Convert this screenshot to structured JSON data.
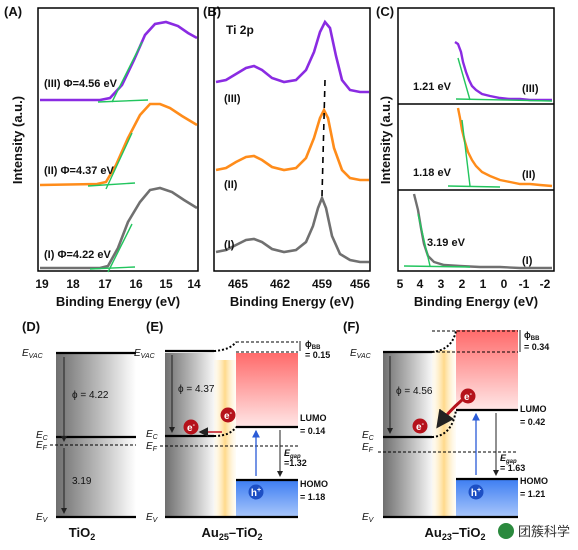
{
  "panels": {
    "A": {
      "letter": "(A)",
      "ylabel": "Intensity (a.u.)",
      "xlabel": "Binding Energy (eV)",
      "xticks": [
        "19",
        "18",
        "17",
        "16",
        "15",
        "14"
      ],
      "curves": [
        {
          "label": "(III) Φ=4.56 eV",
          "color": "#8a2be2"
        },
        {
          "label": "(II) Φ=4.37 eV",
          "color": "#ff8c1a"
        },
        {
          "label": "(I) Φ=4.22 eV",
          "color": "#707070"
        }
      ]
    },
    "B": {
      "letter": "(B)",
      "title": "Ti 2p",
      "xlabel": "Binding Energy (eV)",
      "xticks": [
        "465",
        "462",
        "459",
        "456"
      ],
      "curves": [
        {
          "label": "(III)",
          "color": "#8a2be2"
        },
        {
          "label": "(II)",
          "color": "#ff8c1a"
        },
        {
          "label": "(I)",
          "color": "#707070"
        }
      ]
    },
    "C": {
      "letter": "(C)",
      "ylabel": "Intensity (a.u.)",
      "xlabel": "Binding Energy (eV)",
      "xticks": [
        "5",
        "4",
        "3",
        "2",
        "1",
        "0",
        "-1",
        "-2"
      ],
      "curves": [
        {
          "label": "(III)",
          "edge": "1.21 eV",
          "color": "#8a2be2"
        },
        {
          "label": "(II)",
          "edge": "1.18 eV",
          "color": "#ff8c1a"
        },
        {
          "label": "(I)",
          "edge": "3.19 eV",
          "color": "#707070"
        }
      ]
    },
    "D": {
      "letter": "(D)",
      "evac": "E",
      "evac_sub": "VAC",
      "ec": "E",
      "ec_sub": "C",
      "ef": "E",
      "ef_sub": "F",
      "ev": "E",
      "ev_sub": "V",
      "phi": "ϕ = 4.22",
      "gap": "3.19",
      "caption": "TiO",
      "caption_sub": "2"
    },
    "E": {
      "letter": "(E)",
      "evac": "E",
      "evac_sub": "VAC",
      "ec": "E",
      "ec_sub": "C",
      "ef": "E",
      "ef_sub": "F",
      "ev": "E",
      "ev_sub": "V",
      "phi": "ϕ = 4.37",
      "phibb": "ϕ",
      "phibb_sub": "BB",
      "phibb_val": "= 0.15",
      "lumo": "LUMO",
      "lumo_val": "= 0.14",
      "egap": "E",
      "egap_sub": "gap",
      "egap_val": "=1.32",
      "homo": "HOMO",
      "homo_val": "= 1.18",
      "electron": "e",
      "hole": "h",
      "caption": "Au",
      "caption_sub": "25",
      "caption_tail": "–TiO",
      "caption_tail_sub": "2"
    },
    "F": {
      "letter": "(F)",
      "evac": "E",
      "evac_sub": "VAC",
      "ec": "E",
      "ec_sub": "C",
      "ef": "E",
      "ef_sub": "F",
      "ev": "E",
      "ev_sub": "V",
      "phi": "ϕ = 4.56",
      "phibb": "ϕ",
      "phibb_sub": "BB",
      "phibb_val": "= 0.34",
      "lumo": "LUMO",
      "lumo_val": "= 0.42",
      "egap": "E",
      "egap_sub": "gap",
      "egap_val": "= 1.63",
      "homo": "HOMO",
      "homo_val": "= 1.21",
      "electron": "e",
      "hole": "h",
      "caption": "Au",
      "caption_sub": "23",
      "caption_tail": "–TiO",
      "caption_tail_sub": "2"
    }
  },
  "watermark": "团簇科学"
}
